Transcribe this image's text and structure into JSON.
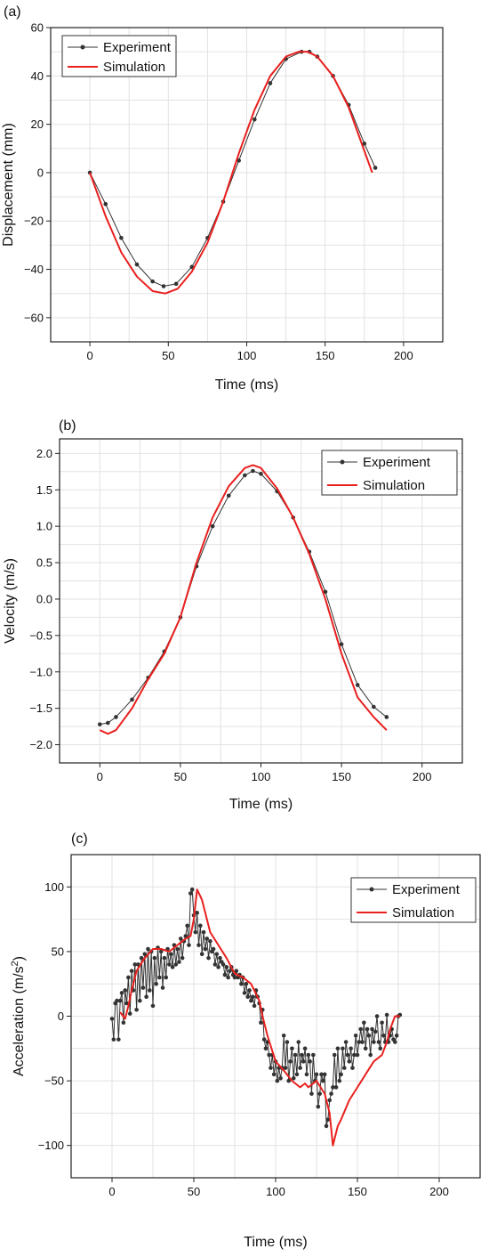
{
  "chart_data": [
    {
      "panel_label": "(a)",
      "type": "line",
      "xlabel": "Time (ms)",
      "ylabel": "Displacement (mm)",
      "xlim": [
        -25,
        225
      ],
      "ylim": [
        -70,
        60
      ],
      "xticks": [
        0,
        50,
        100,
        150,
        200
      ],
      "xtick_labels": [
        "0",
        "50",
        "100",
        "150",
        "200"
      ],
      "yticks": [
        -60,
        -40,
        -20,
        0,
        20,
        40,
        60
      ],
      "ytick_labels": [
        "−60",
        "−40",
        "−20",
        "0",
        "20",
        "40",
        "60"
      ],
      "grid": true,
      "legend_position": "top-left",
      "series": [
        {
          "name": "Experiment",
          "color": "#333333",
          "marker": "circle",
          "x": [
            0,
            10,
            20,
            30,
            40,
            47,
            55,
            65,
            75,
            85,
            95,
            105,
            115,
            125,
            135,
            140,
            145,
            155,
            165,
            175,
            182
          ],
          "y": [
            0,
            -13,
            -27,
            -38,
            -45,
            -47,
            -46,
            -39,
            -27,
            -12,
            5,
            22,
            37,
            47,
            50,
            50,
            48,
            40,
            28,
            12,
            2
          ]
        },
        {
          "name": "Simulation",
          "color": "#e8201e",
          "x": [
            0,
            10,
            20,
            30,
            40,
            48,
            56,
            65,
            75,
            85,
            95,
            105,
            115,
            125,
            133,
            139,
            145,
            155,
            165,
            175,
            180
          ],
          "y": [
            0,
            -18,
            -33,
            -43,
            -49,
            -50,
            -48,
            -41,
            -29,
            -12,
            8,
            26,
            40,
            48,
            50,
            50,
            48,
            40,
            27,
            9,
            0
          ]
        }
      ]
    },
    {
      "panel_label": "(b)",
      "type": "line",
      "xlabel": "Time (ms)",
      "ylabel": "Velocity (m/s)",
      "xlim": [
        -25,
        225
      ],
      "ylim": [
        -2.25,
        2.2
      ],
      "xticks": [
        0,
        50,
        100,
        150,
        200
      ],
      "xtick_labels": [
        "0",
        "50",
        "100",
        "150",
        "200"
      ],
      "yticks": [
        -2.0,
        -1.5,
        -1.0,
        -0.5,
        0.0,
        0.5,
        1.0,
        1.5,
        2.0
      ],
      "ytick_labels": [
        "−2.0",
        "−1.5",
        "−1.0",
        "−0.5",
        "0.0",
        "0.5",
        "1.0",
        "1.5",
        "2.0"
      ],
      "grid": true,
      "legend_position": "top-right",
      "series": [
        {
          "name": "Experiment",
          "color": "#333333",
          "marker": "circle",
          "x": [
            0,
            5,
            10,
            20,
            30,
            40,
            50,
            60,
            70,
            80,
            90,
            95,
            100,
            110,
            120,
            130,
            140,
            150,
            160,
            170,
            178
          ],
          "y": [
            -1.72,
            -1.7,
            -1.62,
            -1.38,
            -1.08,
            -0.72,
            -0.25,
            0.45,
            1.0,
            1.42,
            1.7,
            1.76,
            1.72,
            1.48,
            1.12,
            0.65,
            0.1,
            -0.62,
            -1.18,
            -1.48,
            -1.62
          ]
        },
        {
          "name": "Simulation",
          "color": "#e8201e",
          "x": [
            0,
            5,
            10,
            20,
            30,
            40,
            50,
            60,
            70,
            80,
            90,
            95,
            100,
            110,
            120,
            130,
            140,
            150,
            160,
            170,
            178
          ],
          "y": [
            -1.8,
            -1.85,
            -1.8,
            -1.5,
            -1.1,
            -0.75,
            -0.25,
            0.5,
            1.12,
            1.55,
            1.8,
            1.84,
            1.8,
            1.52,
            1.12,
            0.62,
            0.0,
            -0.75,
            -1.35,
            -1.62,
            -1.8
          ]
        }
      ]
    },
    {
      "panel_label": "(c)",
      "type": "line",
      "xlabel": "Time (ms)",
      "ylabel": "Acceleration (m/s",
      "ylabel_superscript": "2",
      "ylabel_suffix": ")",
      "xlim": [
        -25,
        225
      ],
      "ylim": [
        -125,
        125
      ],
      "xticks": [
        0,
        50,
        100,
        150,
        200
      ],
      "xtick_labels": [
        "0",
        "50",
        "100",
        "150",
        "200"
      ],
      "yticks": [
        -100,
        -50,
        0,
        50,
        100
      ],
      "ytick_labels": [
        "−100",
        "−50",
        "0",
        "50",
        "100"
      ],
      "grid": true,
      "legend_position": "top-right",
      "series": [
        {
          "name": "Experiment",
          "color": "#333333",
          "marker": "circle",
          "x": [
            0,
            1,
            2,
            3,
            4,
            5,
            6,
            7,
            8,
            9,
            10,
            11,
            12,
            13,
            14,
            15,
            16,
            17,
            18,
            19,
            20,
            21,
            22,
            23,
            24,
            25,
            26,
            27,
            28,
            29,
            30,
            31,
            32,
            33,
            34,
            35,
            36,
            37,
            38,
            39,
            40,
            41,
            42,
            43,
            44,
            45,
            46,
            47,
            48,
            49,
            50,
            51,
            52,
            53,
            54,
            55,
            56,
            57,
            58,
            59,
            60,
            61,
            62,
            63,
            64,
            65,
            66,
            67,
            68,
            69,
            70,
            71,
            72,
            73,
            74,
            75,
            76,
            77,
            78,
            79,
            80,
            81,
            82,
            83,
            84,
            85,
            86,
            87,
            88,
            89,
            90,
            91,
            92,
            93,
            94,
            95,
            96,
            97,
            98,
            99,
            100,
            101,
            102,
            103,
            104,
            105,
            106,
            107,
            108,
            109,
            110,
            111,
            112,
            113,
            114,
            115,
            116,
            117,
            118,
            119,
            120,
            121,
            122,
            123,
            124,
            125,
            126,
            127,
            128,
            129,
            130,
            131,
            132,
            133,
            134,
            135,
            136,
            137,
            138,
            139,
            140,
            141,
            142,
            143,
            144,
            145,
            146,
            147,
            148,
            149,
            150,
            151,
            152,
            153,
            154,
            155,
            156,
            157,
            158,
            159,
            160,
            161,
            162,
            163,
            164,
            165,
            166,
            167,
            168,
            169,
            170,
            171,
            172,
            173,
            174,
            175,
            176
          ],
          "y": [
            -2,
            -18,
            10,
            12,
            -18,
            12,
            18,
            -5,
            20,
            10,
            30,
            2,
            35,
            20,
            40,
            5,
            40,
            12,
            45,
            22,
            48,
            15,
            52,
            20,
            50,
            8,
            45,
            25,
            53,
            30,
            50,
            22,
            45,
            30,
            52,
            40,
            48,
            38,
            55,
            40,
            52,
            42,
            60,
            45,
            58,
            62,
            70,
            55,
            95,
            98,
            78,
            65,
            80,
            55,
            70,
            48,
            65,
            52,
            60,
            45,
            58,
            50,
            52,
            40,
            48,
            38,
            45,
            42,
            40,
            32,
            38,
            30,
            35,
            38,
            32,
            30,
            35,
            30,
            32,
            25,
            30,
            18,
            25,
            15,
            20,
            12,
            15,
            8,
            20,
            15,
            10,
            -5,
            5,
            -18,
            -25,
            -20,
            -30,
            -40,
            -30,
            -45,
            -35,
            -50,
            -40,
            -48,
            -40,
            -15,
            -40,
            -20,
            -50,
            -35,
            -25,
            -48,
            -30,
            -45,
            -20,
            -40,
            -30,
            -35,
            -25,
            -45,
            -30,
            -35,
            -60,
            -30,
            -50,
            -45,
            -70,
            -60,
            -45,
            -50,
            -45,
            -85,
            -80,
            -65,
            -60,
            -55,
            -30,
            -55,
            -25,
            -50,
            -45,
            -25,
            -40,
            -20,
            -30,
            -35,
            -25,
            -40,
            -30,
            -15,
            -30,
            -20,
            -10,
            -20,
            -5,
            -25,
            -10,
            -15,
            -30,
            -10,
            -20,
            -12,
            0,
            -20,
            -25,
            -5,
            -15,
            -20,
            1,
            -20,
            -15,
            -10,
            -18,
            -20,
            -15,
            0,
            1
          ]
        },
        {
          "name": "Simulation",
          "color": "#e8201e",
          "x": [
            5,
            8,
            10,
            12,
            15,
            20,
            25,
            30,
            35,
            40,
            45,
            48,
            50,
            52,
            55,
            58,
            60,
            65,
            70,
            75,
            80,
            85,
            90,
            92,
            95,
            100,
            105,
            110,
            115,
            118,
            120,
            125,
            130,
            133,
            135,
            138,
            140,
            145,
            150,
            155,
            160,
            165,
            168,
            170,
            173,
            176
          ],
          "y": [
            3,
            -2,
            8,
            20,
            35,
            45,
            52,
            52,
            50,
            55,
            60,
            62,
            75,
            98,
            90,
            75,
            65,
            55,
            45,
            33,
            30,
            25,
            12,
            0,
            -15,
            -35,
            -42,
            -50,
            -55,
            -52,
            -55,
            -50,
            -60,
            -75,
            -100,
            -85,
            -80,
            -65,
            -55,
            -45,
            -35,
            -30,
            -20,
            -10,
            0,
            0
          ]
        }
      ]
    }
  ]
}
